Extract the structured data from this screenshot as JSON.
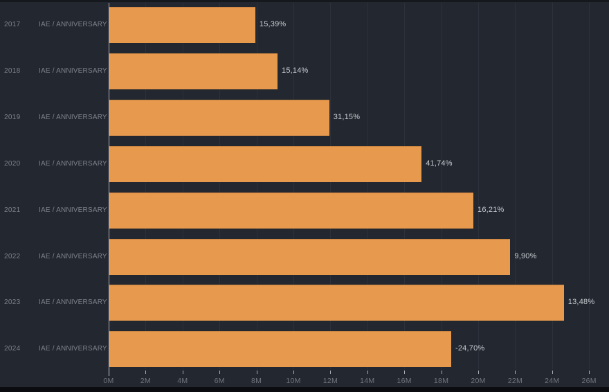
{
  "chart_data": {
    "type": "bar",
    "orientation": "horizontal",
    "title": "",
    "categories": [
      "2017",
      "2018",
      "2019",
      "2020",
      "2021",
      "2022",
      "2023",
      "2024"
    ],
    "row_sublabel": "IAE / ANNIVERSARY",
    "series": [
      {
        "name": "value",
        "unit": "M",
        "values": [
          7.9,
          9.1,
          11.9,
          16.9,
          19.7,
          21.7,
          24.6,
          18.5
        ]
      }
    ],
    "bar_value_labels": [
      "15,39%",
      "15,14%",
      "31,15%",
      "41,74%",
      "16,21%",
      "9,90%",
      "13,48%",
      "-24,70%"
    ],
    "x_ticks": [
      "0M",
      "2M",
      "4M",
      "6M",
      "8M",
      "10M",
      "12M",
      "14M",
      "16M",
      "18M",
      "20M",
      "22M",
      "24M",
      "26M"
    ],
    "xlim": [
      0,
      26
    ],
    "grid": "vertical",
    "legend": "none",
    "colors": {
      "bar": "#e7994d",
      "background": "#23272f",
      "gridline": "#2c313b",
      "axis_line": "#c9ccd2",
      "category_text": "#7d828b",
      "value_text": "#c9cdd3",
      "tick_text": "#71767f"
    }
  }
}
